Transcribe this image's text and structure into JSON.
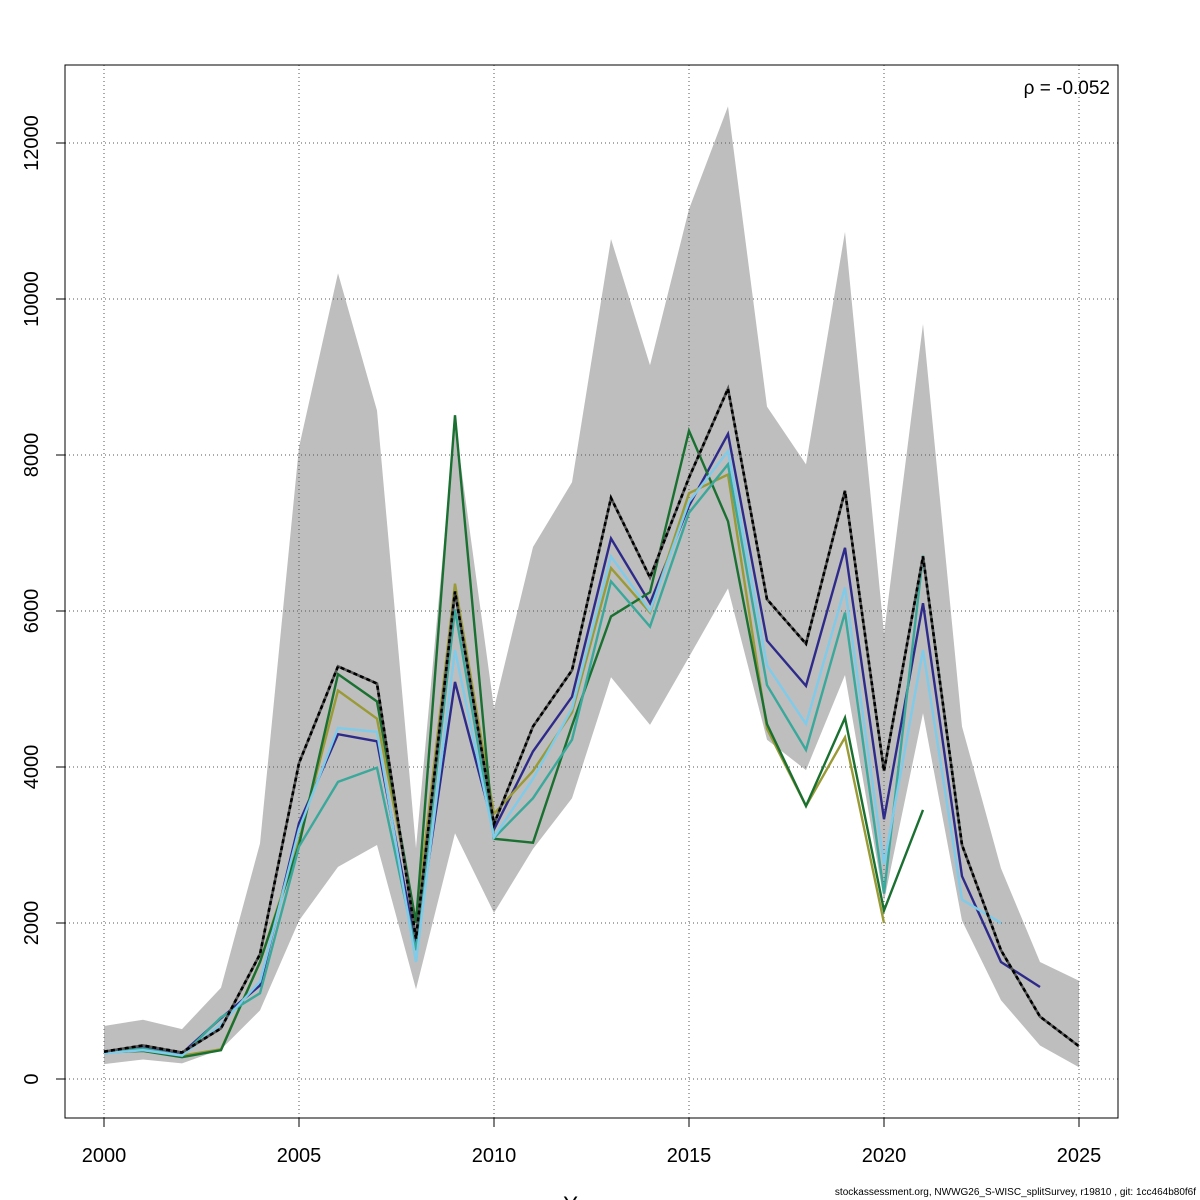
{
  "chart_data": {
    "type": "line",
    "title": "",
    "xlabel": "Years",
    "ylabel": "",
    "xlim": [
      1999.0,
      2026.0
    ],
    "ylim": [
      -500,
      13000
    ],
    "grid": true,
    "annotation": "ρ = -0.052",
    "x_ticks": [
      2000,
      2005,
      2010,
      2015,
      2020,
      2025
    ],
    "y_ticks": [
      0,
      2000,
      4000,
      6000,
      8000,
      10000,
      12000
    ],
    "band": {
      "color": "#bebebe",
      "x": [
        2000,
        2001,
        2002,
        2003,
        2004,
        2005,
        2006,
        2007,
        2008,
        2009,
        2010,
        2011,
        2012,
        2013,
        2014,
        2015,
        2016,
        2017,
        2018,
        2019,
        2020,
        2021,
        2022,
        2023,
        2024,
        2025
      ],
      "upper": [
        680,
        760,
        640,
        1170,
        3020,
        8100,
        10330,
        8570,
        2960,
        8420,
        4750,
        6820,
        7650,
        10770,
        9150,
        11150,
        12470,
        8620,
        7880,
        10860,
        5710,
        9680,
        4520,
        2700,
        1500,
        1260
      ],
      "lower": [
        190,
        250,
        200,
        380,
        880,
        2030,
        2720,
        3000,
        1150,
        3150,
        2130,
        2950,
        3600,
        5150,
        4540,
        5410,
        6290,
        4350,
        3960,
        5180,
        2280,
        4690,
        2030,
        1010,
        430,
        150
      ]
    },
    "series": [
      {
        "color": "#222222",
        "x": [
          2000,
          2001,
          2002,
          2003,
          2004,
          2005,
          2006,
          2007,
          2008,
          2009,
          2010,
          2011,
          2012,
          2013,
          2014,
          2015,
          2016,
          2017,
          2018,
          2019,
          2020,
          2021,
          2022,
          2023,
          2024,
          2025
        ],
        "values": [
          350,
          430,
          340,
          650,
          1600,
          4050,
          5290,
          5070,
          1800,
          6250,
          3270,
          4520,
          5240,
          7450,
          6430,
          7710,
          8850,
          6150,
          5580,
          7540,
          3950,
          6700,
          3000,
          1650,
          800,
          420
        ]
      },
      {
        "color": "#2e2a8a",
        "x": [
          2000,
          2001,
          2002,
          2003,
          2004,
          2005,
          2006,
          2007,
          2008,
          2009,
          2010,
          2011,
          2012,
          2013,
          2014,
          2015,
          2016,
          2017,
          2018,
          2019,
          2020,
          2021,
          2022,
          2023,
          2024
        ],
        "values": [
          340,
          410,
          330,
          780,
          1200,
          3280,
          4420,
          4330,
          1700,
          5090,
          3200,
          4200,
          4900,
          6930,
          6100,
          7350,
          8270,
          5620,
          5040,
          6810,
          3330,
          6100,
          2600,
          1500,
          1180
        ]
      },
      {
        "color": "#9a9a36",
        "x": [
          2000,
          2001,
          2002,
          2003,
          2004,
          2005,
          2006,
          2007,
          2008,
          2009,
          2010,
          2011,
          2012,
          2013,
          2014,
          2015,
          2016,
          2017,
          2018,
          2019,
          2020
        ],
        "values": [
          330,
          390,
          300,
          380,
          1500,
          3050,
          4980,
          4620,
          2020,
          6350,
          3400,
          3950,
          4700,
          6550,
          5980,
          7510,
          7750,
          4490,
          3500,
          4380,
          2000
        ]
      },
      {
        "color": "#1a7030",
        "x": [
          2000,
          2001,
          2002,
          2003,
          2004,
          2005,
          2006,
          2007,
          2008,
          2009,
          2010,
          2011,
          2012,
          2013,
          2014,
          2015,
          2016,
          2017,
          2018,
          2019,
          2020,
          2021
        ],
        "values": [
          340,
          360,
          280,
          370,
          1500,
          3000,
          5190,
          4840,
          2000,
          8510,
          3080,
          3030,
          4530,
          5930,
          6240,
          8310,
          7150,
          4550,
          3500,
          4630,
          2160,
          3450
        ]
      },
      {
        "color": "#3aa89a",
        "x": [
          2000,
          2001,
          2002,
          2003,
          2004,
          2005,
          2006,
          2007,
          2008,
          2009,
          2010,
          2011,
          2012,
          2013,
          2014,
          2015,
          2016,
          2017,
          2018,
          2019,
          2020,
          2021,
          2022
        ],
        "values": [
          330,
          390,
          300,
          790,
          1100,
          2980,
          3810,
          3990,
          1650,
          6020,
          3090,
          3600,
          4350,
          6380,
          5800,
          7260,
          7880,
          5050,
          4220,
          5980,
          2380,
          6710,
          3000
        ]
      },
      {
        "color": "#7ecbea",
        "x": [
          2000,
          2001,
          2002,
          2003,
          2004,
          2005,
          2006,
          2007,
          2008,
          2009,
          2010,
          2011,
          2012,
          2013,
          2014,
          2015,
          2016,
          2017,
          2018,
          2019,
          2020,
          2021,
          2022,
          2023
        ],
        "values": [
          330,
          370,
          300,
          700,
          1250,
          3200,
          4500,
          4450,
          1500,
          5500,
          3100,
          3850,
          4750,
          6700,
          6000,
          7400,
          8050,
          5300,
          4550,
          6300,
          2750,
          5500,
          2300,
          2000
        ]
      }
    ]
  },
  "footer": "stockassessment.org, NWWG26_S-WISC_splitSurvey, r19810 , git: 1cc464b80f6f"
}
